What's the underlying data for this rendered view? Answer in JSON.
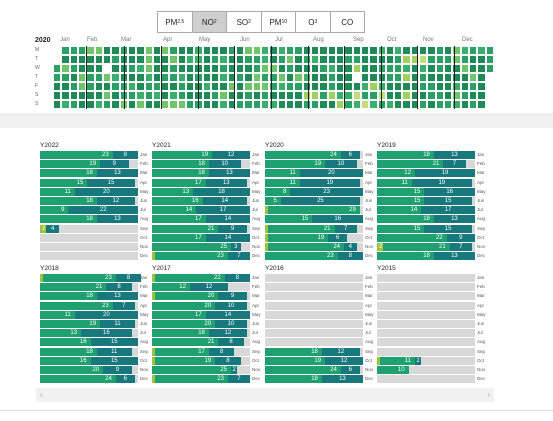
{
  "pollutant_tabs": [
    {
      "name": "PM",
      "sub": "2.5",
      "active": false
    },
    {
      "name": "NO",
      "sub": "2",
      "active": true
    },
    {
      "name": "SO",
      "sub": "2",
      "active": false
    },
    {
      "name": "PM",
      "sub": "10",
      "active": false
    },
    {
      "name": "O",
      "sub": "3",
      "active": false
    },
    {
      "name": "CO",
      "sub": "",
      "active": false
    }
  ],
  "calendar": {
    "year": "2020",
    "months": [
      "Jan",
      "Feb",
      "Mar",
      "Apr",
      "May",
      "Jun",
      "Jul",
      "Aug",
      "Sep",
      "Oct",
      "Nov",
      "Dec"
    ],
    "weekdays": [
      "M",
      "T",
      "W",
      "T",
      "F",
      "S",
      "S"
    ],
    "colors": [
      "#1f8a58",
      "#2aa066",
      "#3aae6b",
      "#73c36b",
      "#a3cf5e",
      "#c2dd7a",
      "#ffffff"
    ]
  },
  "month_labels": [
    "Jan",
    "Feb",
    "Mar",
    "Apr",
    "May",
    "Jun",
    "Jul",
    "Aug",
    "Sep",
    "Oct",
    "Nov",
    "Dec"
  ],
  "colors": {
    "dark": "#17787e",
    "green": "#1fa070",
    "light": "#9cc33b",
    "empty": "#d8d8d8"
  },
  "years": [
    {
      "title": "Y2022",
      "rows": [
        [
          0,
          23,
          8
        ],
        [
          0,
          19,
          9
        ],
        [
          0,
          18,
          13
        ],
        [
          0,
          15,
          15
        ],
        [
          0,
          11,
          20
        ],
        [
          0,
          18,
          12
        ],
        [
          0,
          9,
          22
        ],
        [
          0,
          18,
          13
        ],
        [
          2,
          0,
          4
        ],
        null,
        null,
        null
      ]
    },
    {
      "title": "Y2021",
      "rows": [
        [
          0,
          19,
          12
        ],
        [
          0,
          18,
          10
        ],
        [
          0,
          18,
          13
        ],
        [
          0,
          17,
          13
        ],
        [
          0,
          13,
          18
        ],
        [
          0,
          16,
          14
        ],
        [
          0,
          14,
          17
        ],
        [
          0,
          17,
          14
        ],
        [
          0,
          21,
          9
        ],
        [
          0,
          17,
          14
        ],
        [
          0,
          25,
          3
        ],
        [
          1,
          23,
          7
        ]
      ]
    },
    {
      "title": "Y2020",
      "rows": [
        [
          0,
          24,
          6
        ],
        [
          0,
          19,
          10
        ],
        [
          0,
          11,
          20
        ],
        [
          0,
          11,
          19
        ],
        [
          0,
          8,
          23
        ],
        [
          0,
          5,
          25
        ],
        [
          1,
          29,
          0
        ],
        [
          0,
          15,
          16
        ],
        [
          1,
          21,
          7
        ],
        [
          1,
          19,
          6
        ],
        [
          1,
          24,
          4
        ],
        [
          0,
          23,
          8
        ]
      ]
    },
    {
      "title": "Y2019",
      "rows": [
        [
          0,
          18,
          13
        ],
        [
          0,
          21,
          7
        ],
        [
          0,
          12,
          19
        ],
        [
          0,
          11,
          19
        ],
        [
          0,
          15,
          16
        ],
        [
          0,
          15,
          15
        ],
        [
          0,
          14,
          17
        ],
        [
          0,
          18,
          13
        ],
        [
          0,
          15,
          15
        ],
        [
          0,
          22,
          9
        ],
        [
          2,
          21,
          7
        ],
        [
          0,
          18,
          13
        ]
      ]
    },
    {
      "title": "Y2018",
      "rows": [
        [
          1,
          23,
          8
        ],
        [
          0,
          21,
          8
        ],
        [
          0,
          18,
          13
        ],
        [
          0,
          23,
          7
        ],
        [
          0,
          11,
          20
        ],
        [
          0,
          19,
          11
        ],
        [
          0,
          13,
          16
        ],
        [
          0,
          16,
          15
        ],
        [
          0,
          18,
          11
        ],
        [
          0,
          16,
          15
        ],
        [
          0,
          20,
          9
        ],
        [
          0,
          24,
          6
        ]
      ]
    },
    {
      "title": "Y2017",
      "rows": [
        [
          1,
          22,
          8
        ],
        [
          0,
          12,
          12
        ],
        [
          1,
          20,
          9
        ],
        [
          0,
          20,
          10
        ],
        [
          0,
          17,
          14
        ],
        [
          0,
          20,
          10
        ],
        [
          0,
          18,
          12
        ],
        [
          0,
          21,
          8
        ],
        [
          1,
          17,
          8
        ],
        [
          1,
          19,
          8
        ],
        [
          0,
          25,
          2
        ],
        [
          1,
          23,
          7
        ]
      ]
    },
    {
      "title": "Y2016",
      "rows": [
        null,
        null,
        null,
        null,
        null,
        null,
        null,
        null,
        [
          0,
          18,
          12
        ],
        [
          0,
          19,
          12
        ],
        [
          0,
          24,
          6
        ],
        [
          0,
          18,
          13
        ]
      ]
    },
    {
      "title": "Y2015",
      "rows": [
        null,
        null,
        null,
        null,
        null,
        null,
        null,
        null,
        null,
        [
          1,
          11,
          2
        ],
        [
          0,
          10,
          0
        ],
        null
      ]
    }
  ],
  "scroll": {
    "left": "‹",
    "right": "›"
  }
}
